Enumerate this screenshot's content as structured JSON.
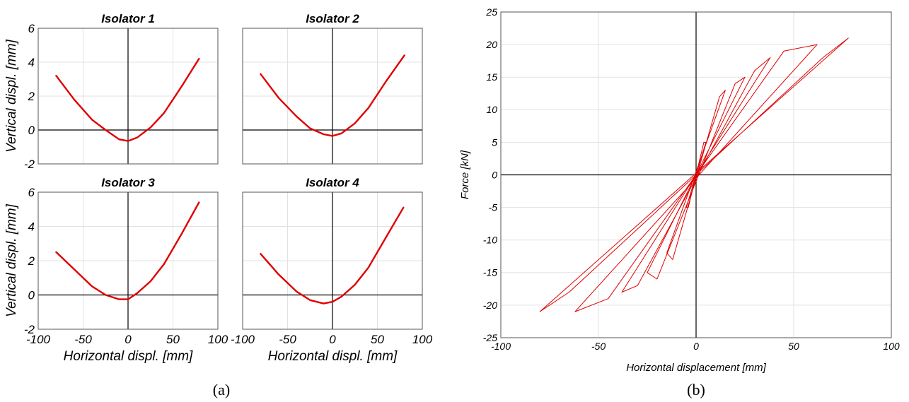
{
  "colors": {
    "series": "#e00000",
    "axis": "#000000",
    "grid": "#e2e2e2"
  },
  "chart_data": [
    {
      "panel": "a1",
      "type": "line",
      "title": "Isolator 1",
      "xlabel": "",
      "ylabel": "Vertical displ. [mm]",
      "xlim": [
        -100,
        100
      ],
      "ylim": [
        -2,
        6
      ],
      "xticks": [
        "-100",
        "-50",
        "0",
        "50",
        "100"
      ],
      "yticks": [
        "-2",
        "0",
        "2",
        "4",
        "6"
      ],
      "show_xticks": false,
      "show_yticks": true,
      "grid": true,
      "x": [
        -80,
        -60,
        -40,
        -25,
        -10,
        0,
        10,
        25,
        40,
        60,
        79
      ],
      "y": [
        3.2,
        1.8,
        0.6,
        0.0,
        -0.55,
        -0.65,
        -0.45,
        0.15,
        1.0,
        2.6,
        4.2
      ]
    },
    {
      "panel": "a2",
      "type": "line",
      "title": "Isolator 2",
      "xlabel": "",
      "ylabel": "",
      "xlim": [
        -100,
        100
      ],
      "ylim": [
        -2,
        6
      ],
      "xticks": [
        "-100",
        "-50",
        "0",
        "50",
        "100"
      ],
      "yticks": [
        "-2",
        "0",
        "2",
        "4",
        "6"
      ],
      "show_xticks": false,
      "show_yticks": false,
      "grid": true,
      "x": [
        -80,
        -60,
        -40,
        -25,
        -10,
        0,
        10,
        25,
        40,
        60,
        80
      ],
      "y": [
        3.3,
        1.9,
        0.8,
        0.1,
        -0.25,
        -0.35,
        -0.2,
        0.4,
        1.3,
        2.9,
        4.4
      ]
    },
    {
      "panel": "a3",
      "type": "line",
      "title": "Isolator 3",
      "xlabel": "Horizontal displ. [mm]",
      "ylabel": "Vertical displ. [mm]",
      "xlim": [
        -100,
        100
      ],
      "ylim": [
        -2,
        6
      ],
      "xticks": [
        "-100",
        "-50",
        "0",
        "50",
        "100"
      ],
      "yticks": [
        "-2",
        "0",
        "2",
        "4",
        "6"
      ],
      "show_xticks": true,
      "show_yticks": true,
      "grid": true,
      "x": [
        -80,
        -60,
        -40,
        -25,
        -10,
        0,
        10,
        25,
        40,
        60,
        79
      ],
      "y": [
        2.5,
        1.5,
        0.5,
        0.0,
        -0.25,
        -0.25,
        0.1,
        0.8,
        1.8,
        3.6,
        5.4
      ]
    },
    {
      "panel": "a4",
      "type": "line",
      "title": "Isolator 4",
      "xlabel": "Horizontal displ. [mm]",
      "ylabel": "",
      "xlim": [
        -100,
        100
      ],
      "ylim": [
        -2,
        6
      ],
      "xticks": [
        "-100",
        "-50",
        "0",
        "50",
        "100"
      ],
      "yticks": [
        "-2",
        "0",
        "2",
        "4",
        "6"
      ],
      "show_xticks": true,
      "show_yticks": false,
      "grid": true,
      "x": [
        -80,
        -60,
        -40,
        -25,
        -10,
        0,
        10,
        25,
        40,
        60,
        79
      ],
      "y": [
        2.4,
        1.2,
        0.2,
        -0.3,
        -0.5,
        -0.4,
        -0.1,
        0.6,
        1.6,
        3.4,
        5.1
      ]
    },
    {
      "panel": "b",
      "type": "line",
      "title": "",
      "xlabel": "Horizontal displacement [mm]",
      "ylabel": "Force [kN]",
      "xlim": [
        -100,
        100
      ],
      "ylim": [
        -25,
        25
      ],
      "xticks": [
        "-100",
        "-50",
        "0",
        "50",
        "100"
      ],
      "yticks": [
        "-25",
        "-20",
        "-15",
        "-10",
        "-5",
        "0",
        "5",
        "10",
        "15",
        "20",
        "25"
      ],
      "grid": true,
      "series": [
        {
          "x": [
            -5,
            -4,
            4,
            5,
            -5
          ],
          "y": [
            -5,
            -5,
            5,
            5,
            -5
          ]
        },
        {
          "x": [
            -15,
            -12,
            12,
            15,
            -15
          ],
          "y": [
            -12,
            -13,
            12,
            13,
            -12
          ]
        },
        {
          "x": [
            -25,
            -20,
            20,
            25,
            -25
          ],
          "y": [
            -15,
            -16,
            14,
            15,
            -15
          ]
        },
        {
          "x": [
            -38,
            -30,
            30,
            38,
            -38
          ],
          "y": [
            -18,
            -17,
            16,
            18,
            -18
          ]
        },
        {
          "x": [
            -62,
            -45,
            45,
            62,
            -62
          ],
          "y": [
            -21,
            -19,
            19,
            20,
            -21
          ]
        },
        {
          "x": [
            -80,
            -65,
            65,
            78,
            -80
          ],
          "y": [
            -21,
            -18,
            18,
            21,
            -21
          ]
        }
      ]
    }
  ],
  "captions": {
    "left": "(a)",
    "right": "(b)"
  }
}
